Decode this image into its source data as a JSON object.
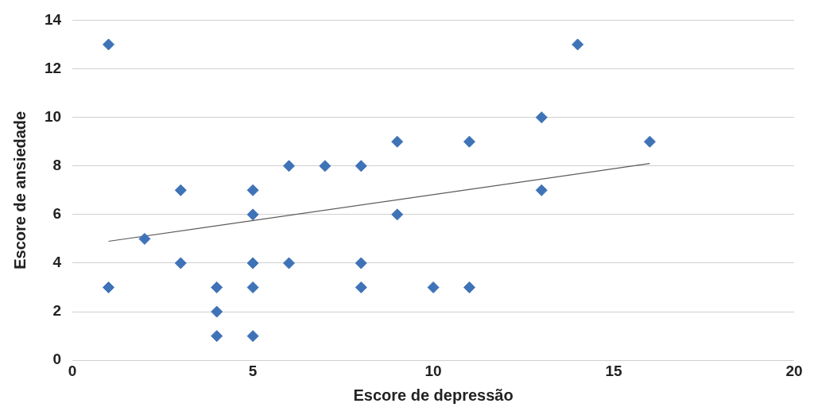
{
  "chart_data": {
    "type": "scatter",
    "xlabel": "Escore de depressão",
    "ylabel": "Escore de ansiedade",
    "xlim": [
      0,
      20
    ],
    "xticks": [
      0,
      5,
      10,
      15,
      20
    ],
    "ylim": [
      0,
      14
    ],
    "yticks": [
      0,
      2,
      4,
      6,
      8,
      10,
      12,
      14
    ],
    "grid": "y",
    "legend": false,
    "marker": "diamond",
    "series": [
      {
        "color": "#3f73b7",
        "x": [
          1,
          1,
          2,
          3,
          3,
          4,
          4,
          4,
          5,
          5,
          5,
          5,
          5,
          6,
          6,
          7,
          8,
          8,
          8,
          9,
          9,
          10,
          11,
          11,
          13,
          13,
          14,
          16
        ],
        "values": [
          13,
          3,
          5,
          7,
          4,
          3,
          2,
          1,
          7,
          6,
          4,
          3,
          1,
          8,
          4,
          8,
          8,
          4,
          3,
          9,
          6,
          3,
          9,
          3,
          10,
          7,
          13,
          9
        ]
      },
      {
        "type": "line",
        "color": "#5a5a5a",
        "marker": "none",
        "x": [
          1,
          16
        ],
        "values": [
          4.9,
          8.1
        ]
      }
    ]
  }
}
